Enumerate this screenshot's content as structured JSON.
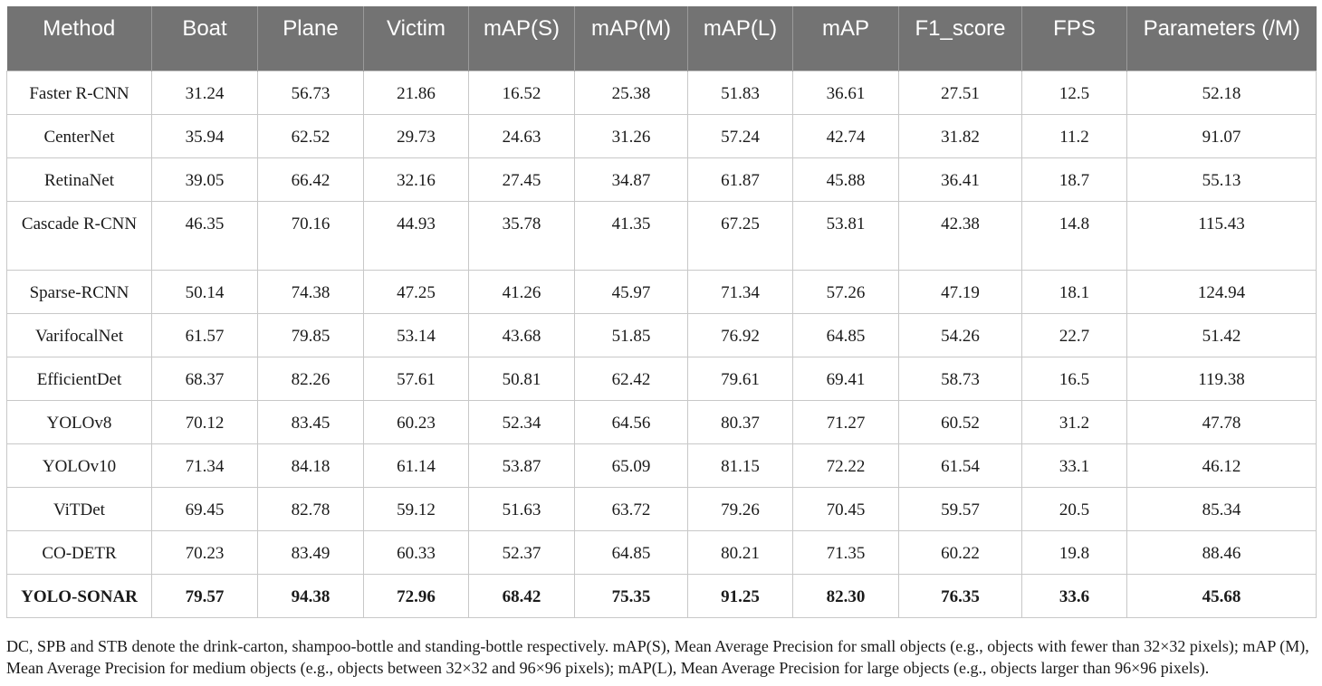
{
  "table": {
    "headers": [
      "Method",
      "Boat",
      "Plane",
      "Victim",
      "mAP(S)",
      "mAP(M)",
      "mAP(L)",
      "mAP",
      "F1_score",
      "FPS",
      "Parameters (/M)"
    ],
    "rows": [
      {
        "method": "Faster R-CNN",
        "values": [
          "31.24",
          "56.73",
          "21.86",
          "16.52",
          "25.38",
          "51.83",
          "36.61",
          "27.51",
          "12.5",
          "52.18"
        ]
      },
      {
        "method": "CenterNet",
        "values": [
          "35.94",
          "62.52",
          "29.73",
          "24.63",
          "31.26",
          "57.24",
          "42.74",
          "31.82",
          "11.2",
          "91.07"
        ]
      },
      {
        "method": "RetinaNet",
        "values": [
          "39.05",
          "66.42",
          "32.16",
          "27.45",
          "34.87",
          "61.87",
          "45.88",
          "36.41",
          "18.7",
          "55.13"
        ]
      },
      {
        "method": "Cascade R-CNN",
        "values": [
          "46.35",
          "70.16",
          "44.93",
          "35.78",
          "41.35",
          "67.25",
          "53.81",
          "42.38",
          "14.8",
          "115.43"
        ]
      },
      {
        "method": "Sparse-RCNN",
        "values": [
          "50.14",
          "74.38",
          "47.25",
          "41.26",
          "45.97",
          "71.34",
          "57.26",
          "47.19",
          "18.1",
          "124.94"
        ]
      },
      {
        "method": "VarifocalNet",
        "values": [
          "61.57",
          "79.85",
          "53.14",
          "43.68",
          "51.85",
          "76.92",
          "64.85",
          "54.26",
          "22.7",
          "51.42"
        ]
      },
      {
        "method": "EfficientDet",
        "values": [
          "68.37",
          "82.26",
          "57.61",
          "50.81",
          "62.42",
          "79.61",
          "69.41",
          "58.73",
          "16.5",
          "119.38"
        ]
      },
      {
        "method": "YOLOv8",
        "values": [
          "70.12",
          "83.45",
          "60.23",
          "52.34",
          "64.56",
          "80.37",
          "71.27",
          "60.52",
          "31.2",
          "47.78"
        ]
      },
      {
        "method": "YOLOv10",
        "values": [
          "71.34",
          "84.18",
          "61.14",
          "53.87",
          "65.09",
          "81.15",
          "72.22",
          "61.54",
          "33.1",
          "46.12"
        ]
      },
      {
        "method": "ViTDet",
        "values": [
          "69.45",
          "82.78",
          "59.12",
          "51.63",
          "63.72",
          "79.26",
          "70.45",
          "59.57",
          "20.5",
          "85.34"
        ]
      },
      {
        "method": "CO-DETR",
        "values": [
          "70.23",
          "83.49",
          "60.33",
          "52.37",
          "64.85",
          "80.21",
          "71.35",
          "60.22",
          "19.8",
          "88.46"
        ]
      },
      {
        "method": "YOLO-SONAR",
        "values": [
          "79.57",
          "94.38",
          "72.96",
          "68.42",
          "75.35",
          "91.25",
          "82.30",
          "76.35",
          "33.6",
          "45.68"
        ],
        "bold": true
      }
    ]
  },
  "footnote": "DC, SPB and STB denote the drink-carton, shampoo-bottle and standing-bottle respectively. mAP(S), Mean Average Precision for small objects (e.g., objects with fewer than 32×32 pixels); mAP (M), Mean Average Precision for medium objects (e.g., objects between 32×32 and 96×96 pixels); mAP(L), Mean Average Precision for large objects (e.g., objects larger than 96×96 pixels).",
  "colors": {
    "header_bg": "#737373",
    "header_text": "#ffffff",
    "grid_line": "#c8c8c8"
  }
}
